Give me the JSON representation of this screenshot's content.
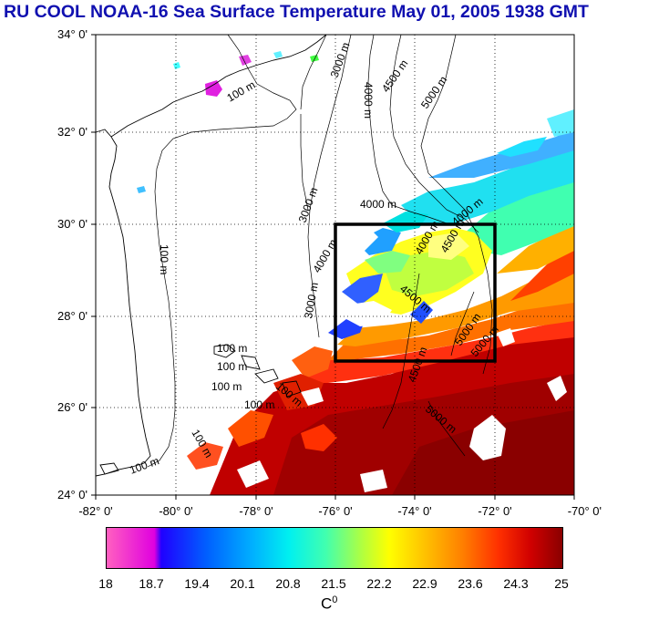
{
  "title": "RU COOL  NOAA-16 Sea Surface Temperature May 01, 2005 1938 GMT",
  "map": {
    "lat_labels": [
      "34° 0'",
      "32° 0'",
      "30° 0'",
      "28° 0'",
      "26° 0'",
      "24° 0'"
    ],
    "lon_labels": [
      "-82° 0'",
      "-80° 0'",
      "-78° 0'",
      "-76° 0'",
      "-74° 0'",
      "-72° 0'",
      "-70° 0'"
    ],
    "lat_range": [
      24,
      34
    ],
    "lon_range": [
      -82,
      -70
    ],
    "study_box": {
      "lon": [
        -76,
        -72
      ],
      "lat": [
        27,
        30
      ]
    },
    "contour_labels": [
      "100 m",
      "100 m",
      "100 m",
      "100 m",
      "100 m",
      "100 m",
      "100 m",
      "100 m",
      "100 m",
      "3000 m",
      "3000 m",
      "3000 m",
      "4000 m",
      "4000 m",
      "4000 m",
      "4000 m",
      "4500 m",
      "4500 m",
      "4500 m",
      "4500 m",
      "5000 m",
      "5000 m",
      "5000 m",
      "5000 m",
      "4000 m"
    ],
    "grid": "dotted"
  },
  "colorbar": {
    "ticks": [
      "18",
      "18.7",
      "19.4",
      "20.1",
      "20.8",
      "21.5",
      "22.2",
      "22.9",
      "23.6",
      "24.3",
      "25"
    ],
    "unit": "C",
    "unit_sup": "0"
  }
}
